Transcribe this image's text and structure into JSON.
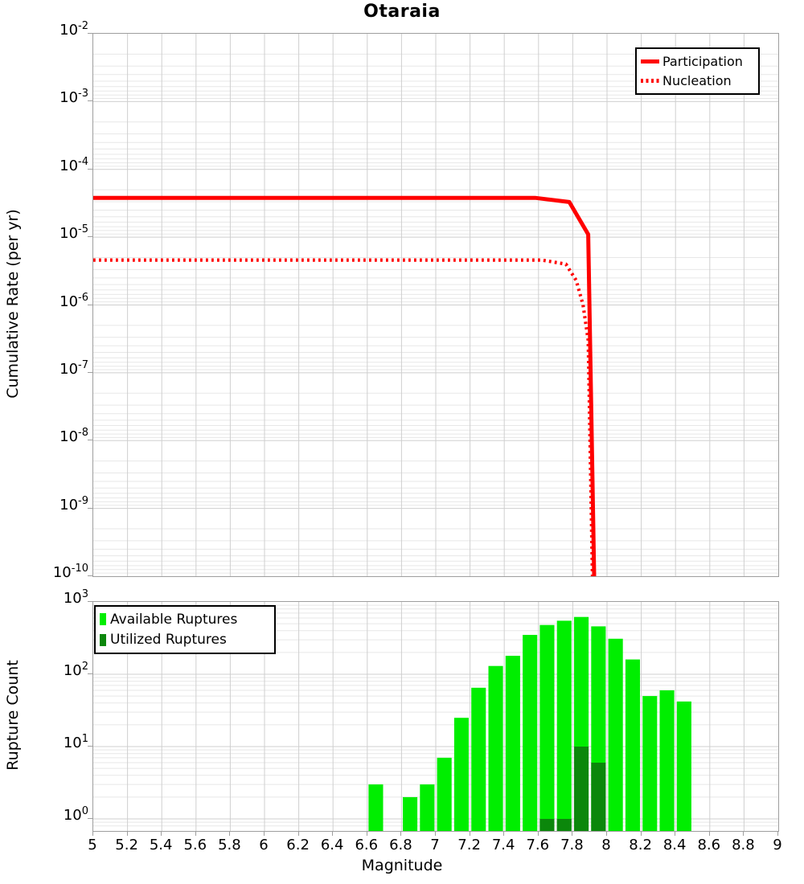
{
  "title": "Otaraia",
  "colors": {
    "series_red": "#ff0000",
    "available_green": "#00ee00",
    "utilized_green": "#0b870b",
    "grid_major": "#cfcfcf",
    "grid_minor": "#e7e7e7",
    "axis_border": "#9e9e9e"
  },
  "y_axis_top": {
    "label": "Cumulative Rate (per yr)",
    "base": "10",
    "tick_exponents": [
      -2,
      -3,
      -4,
      -5,
      -6,
      -7,
      -8,
      -9,
      -10
    ]
  },
  "y_axis_bottom": {
    "label": "Rupture Count",
    "base": "10",
    "tick_exponents": [
      3,
      2,
      1,
      0
    ]
  },
  "x_axis": {
    "label": "Magnitude",
    "tick_values": [
      5,
      5.2,
      5.4,
      5.6,
      5.8,
      6,
      6.2,
      6.4,
      6.6,
      6.8,
      7,
      7.2,
      7.4,
      7.6,
      7.8,
      8,
      8.2,
      8.4,
      8.6,
      8.8,
      9
    ],
    "tick_labels": [
      "5",
      "5.2",
      "5.4",
      "5.6",
      "5.8",
      "6",
      "6.2",
      "6.4",
      "6.6",
      "6.8",
      "7",
      "7.2",
      "7.4",
      "7.6",
      "7.8",
      "8",
      "8.2",
      "8.4",
      "8.6",
      "8.8",
      "9"
    ]
  },
  "chart_data": [
    {
      "type": "line",
      "title": "Otaraia",
      "ylabel": "Cumulative Rate (per yr)",
      "xlabel": "",
      "xlim": [
        5,
        9
      ],
      "ylim": [
        1e-10,
        0.01
      ],
      "grid": true,
      "legend": {
        "position": "top-right",
        "entries": [
          {
            "label": "Participation",
            "style": "solid",
            "color": "#ff0000"
          },
          {
            "label": "Nucleation",
            "style": "dotted",
            "color": "#ff0000"
          }
        ]
      },
      "series": [
        {
          "name": "Participation",
          "style": "solid",
          "points": [
            [
              5,
              3.8e-05
            ],
            [
              7.58,
              3.8e-05
            ],
            [
              7.78,
              3.3e-05
            ],
            [
              7.89,
              1.1e-05
            ],
            [
              7.925,
              1e-10
            ]
          ]
        },
        {
          "name": "Nucleation",
          "style": "dotted",
          "points": [
            [
              5,
              4.6e-06
            ],
            [
              7.62,
              4.6e-06
            ],
            [
              7.76,
              4e-06
            ],
            [
              7.82,
              2.3e-06
            ],
            [
              7.86,
              1e-06
            ],
            [
              7.89,
              3e-07
            ],
            [
              7.915,
              1e-10
            ]
          ]
        }
      ]
    },
    {
      "type": "bar",
      "title": "",
      "ylabel": "Rupture Count",
      "xlabel": "Magnitude",
      "xlim": [
        5,
        9
      ],
      "ylim": [
        0.66,
        1000
      ],
      "bin_width": 0.1,
      "grid": true,
      "legend": {
        "position": "top-left",
        "entries": [
          {
            "label": "Available Ruptures",
            "color": "#00ee00"
          },
          {
            "label": "Utilized Ruptures",
            "color": "#0b870b"
          }
        ]
      },
      "series": [
        {
          "name": "Available Ruptures",
          "bins": [
            {
              "mag": 6.6,
              "count": 3
            },
            {
              "mag": 6.8,
              "count": 2
            },
            {
              "mag": 6.9,
              "count": 3
            },
            {
              "mag": 7.0,
              "count": 7
            },
            {
              "mag": 7.1,
              "count": 25
            },
            {
              "mag": 7.2,
              "count": 65
            },
            {
              "mag": 7.3,
              "count": 130
            },
            {
              "mag": 7.4,
              "count": 180
            },
            {
              "mag": 7.5,
              "count": 350
            },
            {
              "mag": 7.6,
              "count": 480
            },
            {
              "mag": 7.7,
              "count": 550
            },
            {
              "mag": 7.8,
              "count": 620
            },
            {
              "mag": 7.9,
              "count": 460
            },
            {
              "mag": 8.0,
              "count": 310
            },
            {
              "mag": 8.1,
              "count": 160
            },
            {
              "mag": 8.2,
              "count": 50
            },
            {
              "mag": 8.3,
              "count": 60
            },
            {
              "mag": 8.4,
              "count": 42
            }
          ]
        },
        {
          "name": "Utilized Ruptures",
          "bins": [
            {
              "mag": 7.6,
              "count": 1
            },
            {
              "mag": 7.7,
              "count": 1
            },
            {
              "mag": 7.8,
              "count": 10
            },
            {
              "mag": 7.9,
              "count": 6
            }
          ]
        }
      ]
    }
  ]
}
